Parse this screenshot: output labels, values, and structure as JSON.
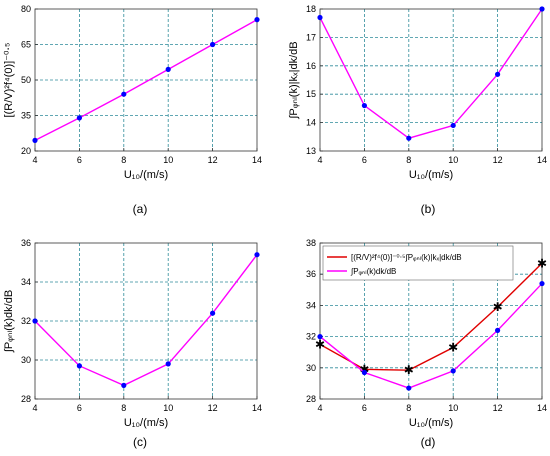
{
  "chart_data": [
    {
      "type": "line",
      "panel_label": "(a)",
      "xlabel": "U₁₀/(m/s)",
      "ylabel": "[(R/V)²f⁴(0)]⁻⁰⋅⁵",
      "x": [
        4,
        6,
        8,
        10,
        12,
        14
      ],
      "xticks": [
        "4",
        "6",
        "8",
        "10",
        "12",
        "14"
      ],
      "xlim": [
        4,
        14
      ],
      "ylim": [
        20,
        80
      ],
      "yticks": [
        "20",
        "35",
        "50",
        "65",
        "80"
      ],
      "grid": true,
      "series": [
        {
          "values": [
            24.5,
            34,
            44,
            54.5,
            65,
            75.5
          ],
          "color": "#ff00ff",
          "marker": "dot",
          "marker_color": "#0000ff"
        }
      ]
    },
    {
      "type": "line",
      "panel_label": "(b)",
      "xlabel": "U₁₀/(m/s)",
      "ylabel": "∫Pᵩₙₗ(k)|kₓ|dk/dB",
      "x": [
        4,
        6,
        8,
        10,
        12,
        14
      ],
      "xticks": [
        "4",
        "6",
        "8",
        "10",
        "12",
        "14"
      ],
      "xlim": [
        4,
        14
      ],
      "ylim": [
        13,
        18
      ],
      "yticks": [
        "13",
        "14",
        "15",
        "16",
        "17",
        "18"
      ],
      "grid": true,
      "series": [
        {
          "values": [
            17.7,
            14.6,
            13.45,
            13.9,
            15.7,
            18.0
          ],
          "color": "#ff00ff",
          "marker": "dot",
          "marker_color": "#0000ff"
        }
      ]
    },
    {
      "type": "line",
      "panel_label": "(c)",
      "xlabel": "U₁₀/(m/s)",
      "ylabel": "∫Pᵩₙₗ(k)dk/dB",
      "x": [
        4,
        6,
        8,
        10,
        12,
        14
      ],
      "xticks": [
        "4",
        "6",
        "8",
        "10",
        "12",
        "14"
      ],
      "xlim": [
        4,
        14
      ],
      "ylim": [
        28,
        36
      ],
      "yticks": [
        "28",
        "30",
        "32",
        "34",
        "36"
      ],
      "grid": true,
      "series": [
        {
          "values": [
            32.0,
            29.7,
            28.7,
            29.8,
            32.4,
            35.4
          ],
          "color": "#ff00ff",
          "marker": "dot",
          "marker_color": "#0000ff"
        }
      ]
    },
    {
      "type": "line",
      "panel_label": "(d)",
      "xlabel": "U₁₀/(m/s)",
      "ylabel": "",
      "x": [
        4,
        6,
        8,
        10,
        12,
        14
      ],
      "xticks": [
        "4",
        "6",
        "8",
        "10",
        "12",
        "14"
      ],
      "xlim": [
        4,
        14
      ],
      "ylim": [
        28,
        38
      ],
      "yticks": [
        "28",
        "30",
        "32",
        "34",
        "36",
        "38"
      ],
      "grid": true,
      "legend_position": "top-left",
      "series": [
        {
          "name": "[(R/V)²f⁴(0)]⁻⁰⋅⁵∫Pᵩₙₗ(k)|kₓ|dk/dB",
          "values": [
            31.5,
            29.9,
            29.85,
            31.3,
            33.9,
            36.7
          ],
          "color": "#e00000",
          "marker": "star",
          "marker_color": "#44ee22"
        },
        {
          "name": "∫Pᵩₙₗ(k)dk/dB",
          "values": [
            32.0,
            29.7,
            28.7,
            29.8,
            32.4,
            35.4
          ],
          "color": "#ff00ff",
          "marker": "dot",
          "marker_color": "#0000ff"
        }
      ]
    }
  ]
}
